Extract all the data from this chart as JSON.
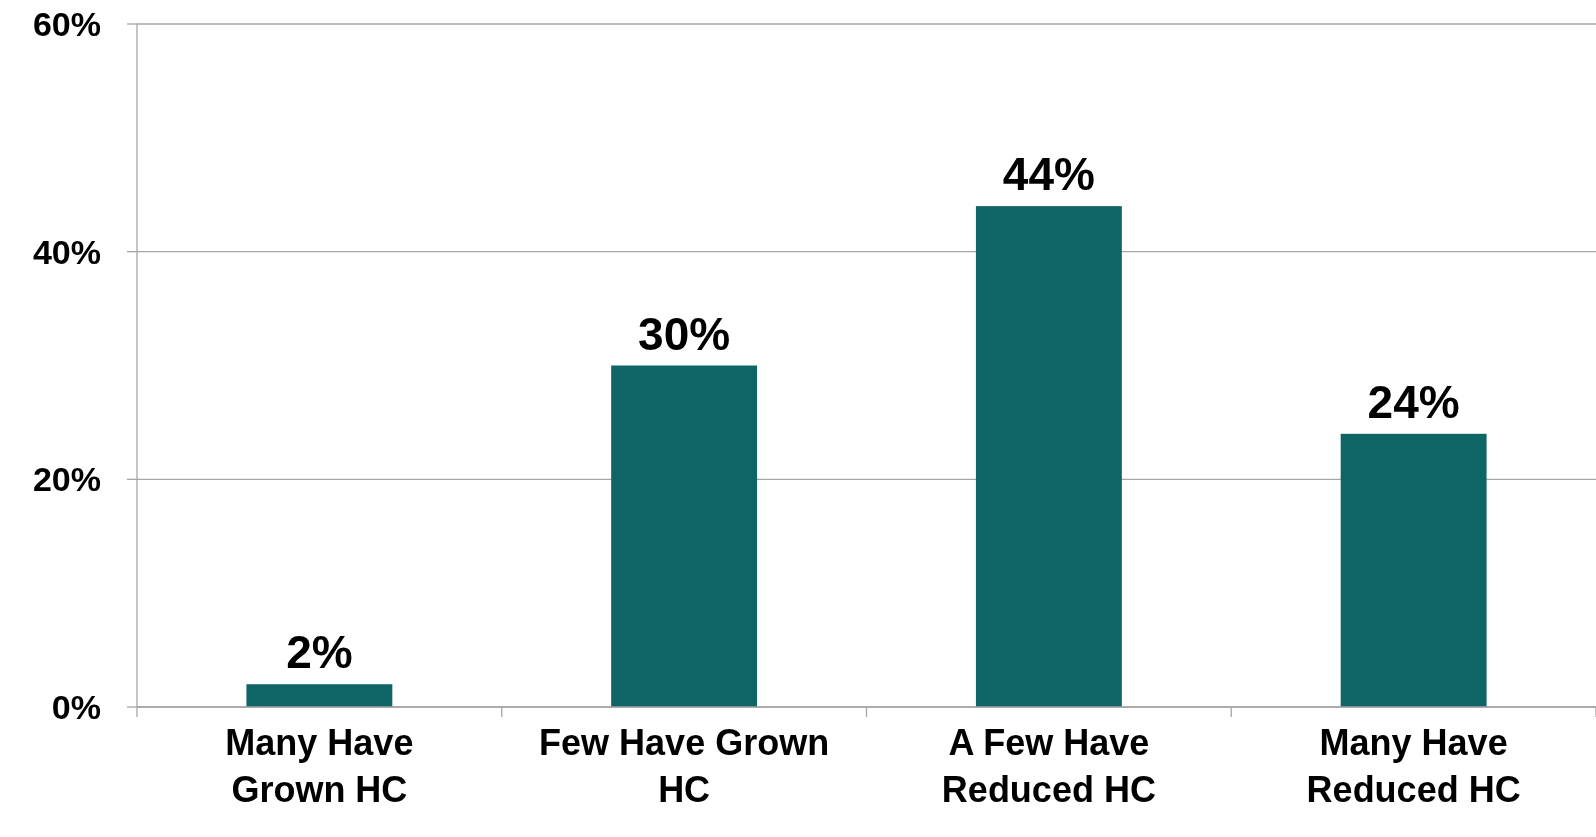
{
  "chart_data": {
    "type": "bar",
    "categories": [
      "Many Have Grown HC",
      "Few Have Grown HC",
      "A Few Have Reduced HC",
      "Many Have Reduced HC"
    ],
    "values": [
      2,
      30,
      44,
      24
    ],
    "color": "#0f6466",
    "value_labels": [
      "2%",
      "30%",
      "44%",
      "24%"
    ],
    "ylim": [
      0,
      60
    ],
    "yticks": [
      {
        "value": 0,
        "label": "0%"
      },
      {
        "value": 20,
        "label": "20%"
      },
      {
        "value": 40,
        "label": "40%"
      },
      {
        "value": 60,
        "label": "60%"
      }
    ],
    "grid": "y"
  }
}
